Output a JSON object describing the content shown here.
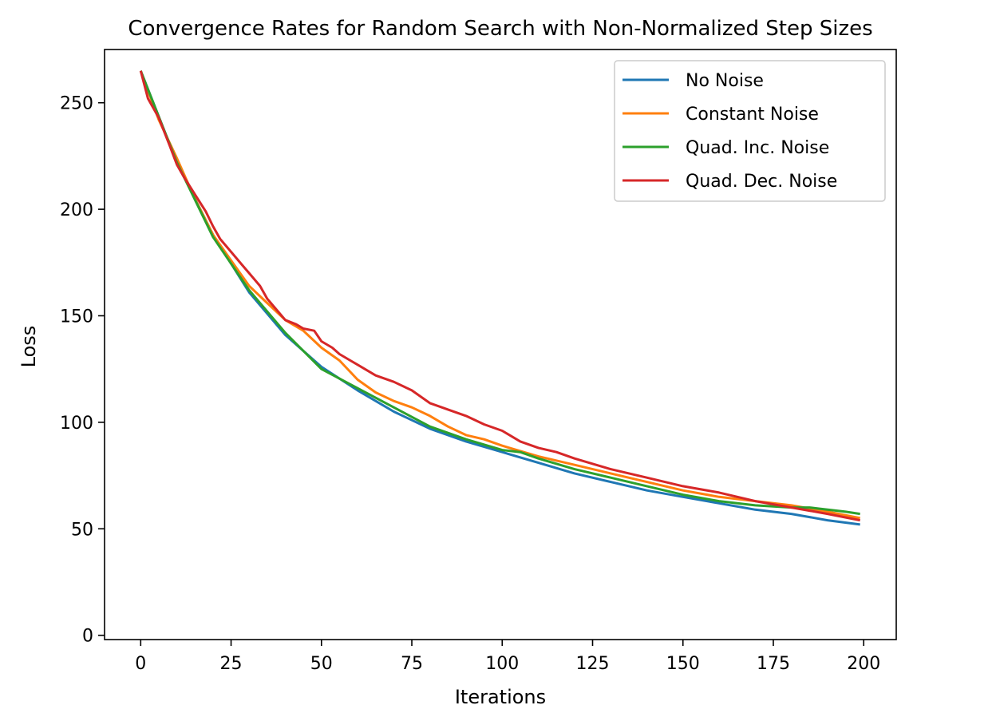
{
  "chart_data": {
    "type": "line",
    "title": "Convergence Rates for Random Search with Non-Normalized Step Sizes",
    "xlabel": "Iterations",
    "ylabel": "Loss",
    "xlim": [
      -10,
      209
    ],
    "ylim": [
      -2,
      275
    ],
    "xticks": [
      0,
      25,
      50,
      75,
      100,
      125,
      150,
      175,
      200
    ],
    "yticks": [
      0,
      50,
      100,
      150,
      200,
      250
    ],
    "grid": false,
    "legend_position": "upper right",
    "series": [
      {
        "name": "No Noise",
        "color": "#1f77b4",
        "x": [
          0,
          10,
          20,
          30,
          40,
          50,
          60,
          70,
          80,
          90,
          100,
          110,
          120,
          130,
          140,
          150,
          160,
          170,
          180,
          190,
          199
        ],
        "y": [
          265,
          222,
          188,
          161,
          141,
          126,
          115,
          105,
          97,
          91,
          86,
          81,
          76,
          72,
          68,
          65,
          62,
          59,
          57,
          54,
          52
        ]
      },
      {
        "name": "Constant Noise",
        "color": "#ff7f0e",
        "x": [
          0,
          5,
          10,
          15,
          20,
          25,
          30,
          35,
          40,
          45,
          50,
          55,
          60,
          65,
          70,
          75,
          80,
          85,
          90,
          95,
          100,
          110,
          120,
          130,
          140,
          150,
          160,
          170,
          180,
          190,
          199
        ],
        "y": [
          265,
          242,
          224,
          205,
          188,
          176,
          164,
          156,
          148,
          143,
          135,
          129,
          120,
          114,
          110,
          107,
          103,
          98,
          94,
          92,
          89,
          84,
          80,
          76,
          72,
          68,
          65,
          63,
          61,
          58,
          55
        ]
      },
      {
        "name": "Quad. Inc. Noise",
        "color": "#2ca02c",
        "x": [
          0,
          10,
          20,
          30,
          40,
          50,
          60,
          70,
          80,
          90,
          100,
          105,
          110,
          120,
          130,
          140,
          150,
          160,
          170,
          180,
          185,
          190,
          195,
          199
        ],
        "y": [
          265,
          222,
          187,
          162,
          142,
          125,
          116,
          107,
          98,
          92,
          87,
          86,
          83,
          78,
          74,
          70,
          66,
          63,
          61,
          60,
          60,
          59,
          58,
          57
        ]
      },
      {
        "name": "Quad. Dec. Noise",
        "color": "#d62728",
        "x": [
          0,
          2,
          5,
          8,
          10,
          12,
          15,
          18,
          20,
          22,
          25,
          28,
          30,
          33,
          35,
          38,
          40,
          43,
          45,
          48,
          50,
          53,
          55,
          58,
          60,
          65,
          70,
          75,
          80,
          85,
          90,
          95,
          100,
          105,
          110,
          115,
          120,
          130,
          140,
          150,
          160,
          170,
          180,
          190,
          199
        ],
        "y": [
          265,
          252,
          243,
          230,
          221,
          215,
          207,
          199,
          192,
          186,
          180,
          174,
          170,
          164,
          158,
          152,
          148,
          146,
          144,
          143,
          138,
          135,
          132,
          129,
          127,
          122,
          119,
          115,
          109,
          106,
          103,
          99,
          96,
          91,
          88,
          86,
          83,
          78,
          74,
          70,
          67,
          63,
          60,
          57,
          54
        ]
      }
    ]
  }
}
